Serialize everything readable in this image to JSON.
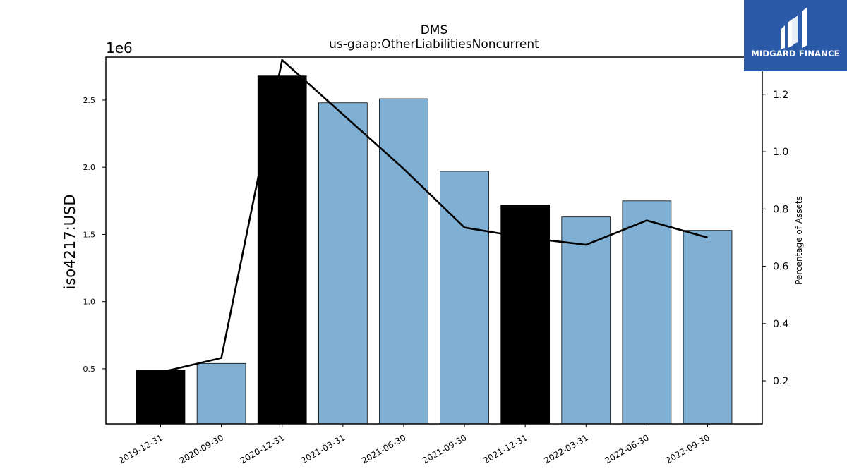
{
  "chart_data": {
    "type": "bar",
    "title": "DMS",
    "subtitle": "us-gaap:OtherLiabilitiesNoncurrent",
    "ylabel": "iso4217:USD",
    "y2label": "Percentage of Assets",
    "y_offset_label": "1e6",
    "categories": [
      "2019-12-31",
      "2020-09-30",
      "2020-12-31",
      "2021-03-31",
      "2021-06-30",
      "2021-09-30",
      "2021-12-31",
      "2022-03-31",
      "2022-06-30",
      "2022-09-30"
    ],
    "values": [
      0.49,
      0.54,
      2.68,
      2.48,
      2.51,
      1.97,
      1.72,
      1.63,
      1.75,
      1.53
    ],
    "bar_colors": [
      "#000000",
      "#7fb0d4",
      "#000000",
      "#7fb0d4",
      "#7fb0d4",
      "#7fb0d4",
      "#000000",
      "#7fb0d4",
      "#7fb0d4",
      "#7fb0d4"
    ],
    "line_series": {
      "values": [
        0.23,
        0.28,
        1.32,
        1.13,
        0.94,
        0.735,
        0.7,
        0.675,
        0.76,
        0.7
      ],
      "color": "#000000"
    },
    "ylim": [
      0.09,
      2.82
    ],
    "y2lim": [
      0.05,
      1.33
    ],
    "yticks": [
      "0.5",
      "1.0",
      "1.5",
      "2.0",
      "2.5"
    ],
    "y2ticks": [
      "0.2",
      "0.4",
      "0.6",
      "0.8",
      "1.0",
      "1.2"
    ],
    "grid": false
  },
  "logo": {
    "text": "MIDGARD FINANCE",
    "bg_color": "#2b5aa8"
  }
}
